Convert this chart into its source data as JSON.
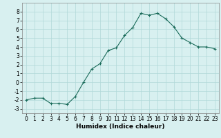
{
  "x": [
    0,
    1,
    2,
    3,
    4,
    5,
    6,
    7,
    8,
    9,
    10,
    11,
    12,
    13,
    14,
    15,
    16,
    17,
    18,
    19,
    20,
    21,
    22,
    23
  ],
  "y": [
    -2.0,
    -1.8,
    -1.8,
    -2.4,
    -2.4,
    -2.5,
    -1.6,
    0.0,
    1.5,
    2.1,
    3.6,
    3.9,
    5.3,
    6.2,
    7.8,
    7.6,
    7.8,
    7.2,
    6.3,
    5.0,
    4.5,
    4.0,
    4.0,
    3.8
  ],
  "line_color": "#1a6b5a",
  "marker": "+",
  "bg_color": "#d8f0f0",
  "grid_color": "#b0d8d8",
  "xlabel": "Humidex (Indice chaleur)",
  "xlabel_fontsize": 6.5,
  "xlim": [
    -0.5,
    23.5
  ],
  "ylim": [
    -3.5,
    9.0
  ],
  "yticks": [
    -3,
    -2,
    -1,
    0,
    1,
    2,
    3,
    4,
    5,
    6,
    7,
    8
  ],
  "xticks": [
    0,
    1,
    2,
    3,
    4,
    5,
    6,
    7,
    8,
    9,
    10,
    11,
    12,
    13,
    14,
    15,
    16,
    17,
    18,
    19,
    20,
    21,
    22,
    23
  ],
  "tick_fontsize": 5.5
}
